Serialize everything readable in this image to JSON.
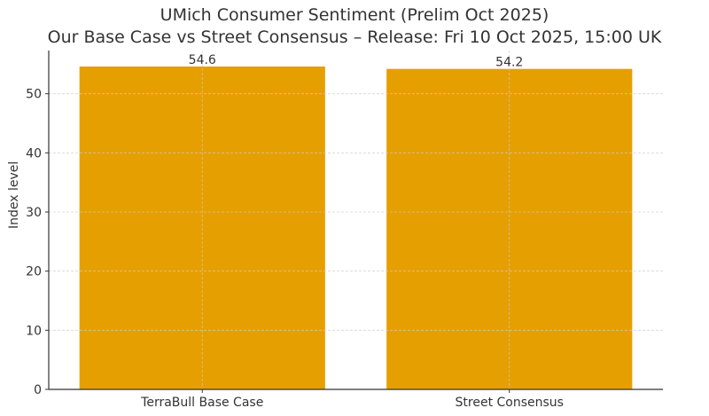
{
  "chart_data": {
    "type": "bar",
    "title": "UMich Consumer Sentiment (Prelim Oct 2025)",
    "subtitle": "Our Base Case vs Street Consensus – Release: Fri 10 Oct 2025, 15:00 UK",
    "categories": [
      "TerraBull Base Case",
      "Street Consensus"
    ],
    "values": [
      54.6,
      54.2
    ],
    "data_labels": [
      "54.6",
      "54.2"
    ],
    "xlabel": "",
    "ylabel": "Index level",
    "ylim": [
      0,
      57.3
    ],
    "yticks": [
      0,
      10,
      20,
      30,
      40,
      50
    ],
    "grid": true,
    "bar_color": "#E69F00"
  }
}
